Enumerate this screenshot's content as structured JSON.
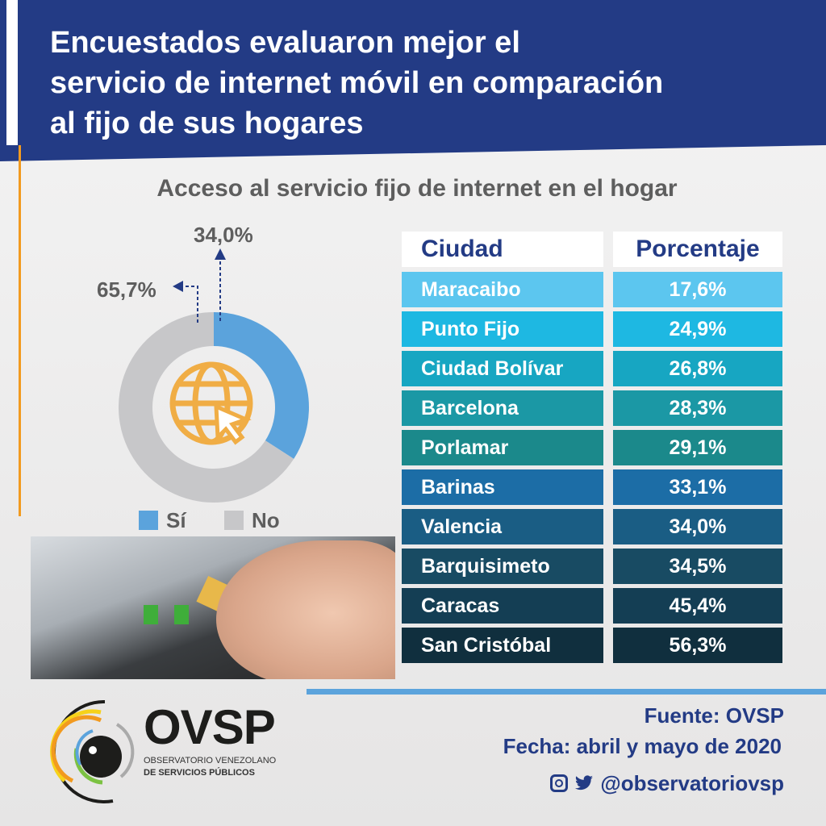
{
  "header": {
    "title_lines": [
      "Encuestados evaluaron mejor el",
      "servicio de internet móvil en comparación",
      "al fijo de sus hogares"
    ]
  },
  "chart_data": [
    {
      "type": "pie",
      "title": "Acceso al servicio fijo de internet en el hogar",
      "slices": [
        {
          "label": "Sí",
          "value": 34.0,
          "display": "34,0%",
          "color": "#5ba3dc"
        },
        {
          "label": "No",
          "value": 65.7,
          "display": "65,7%",
          "color": "#c7c7c9"
        }
      ],
      "legend": "bottom",
      "icon": "globe-cursor-icon"
    },
    {
      "type": "table",
      "columns": [
        "Ciudad",
        "Porcentaje"
      ],
      "rows": [
        {
          "city": "Maracaibo",
          "pct": "17,6%",
          "value": 17.6,
          "color": "#5cc6ef"
        },
        {
          "city": "Punto Fijo",
          "pct": "24,9%",
          "value": 24.9,
          "color": "#1eb8e2"
        },
        {
          "city": "Ciudad Bolívar",
          "pct": "26,8%",
          "value": 26.8,
          "color": "#17a6c2"
        },
        {
          "city": "Barcelona",
          "pct": "28,3%",
          "value": 28.3,
          "color": "#1b98a5"
        },
        {
          "city": "Porlamar",
          "pct": "29,1%",
          "value": 29.1,
          "color": "#1b898b"
        },
        {
          "city": "Barinas",
          "pct": "33,1%",
          "value": 33.1,
          "color": "#1c6da6"
        },
        {
          "city": "Valencia",
          "pct": "34,0%",
          "value": 34.0,
          "color": "#1a5d84"
        },
        {
          "city": "Barquisimeto",
          "pct": "34,5%",
          "value": 34.5,
          "color": "#184b63"
        },
        {
          "city": "Caracas",
          "pct": "45,4%",
          "value": 45.4,
          "color": "#143e54"
        },
        {
          "city": "San Cristóbal",
          "pct": "56,3%",
          "value": 56.3,
          "color": "#102f3e"
        }
      ]
    }
  ],
  "footer": {
    "source": "Fuente: OVSP",
    "date": "Fecha: abril y mayo de 2020",
    "handle": "@observatoriovsp",
    "logo_text": "OVSP",
    "logo_sub1": "OBSERVATORIO VENEZOLANO",
    "logo_sub2": "DE SERVICIOS PÚBLICOS"
  }
}
